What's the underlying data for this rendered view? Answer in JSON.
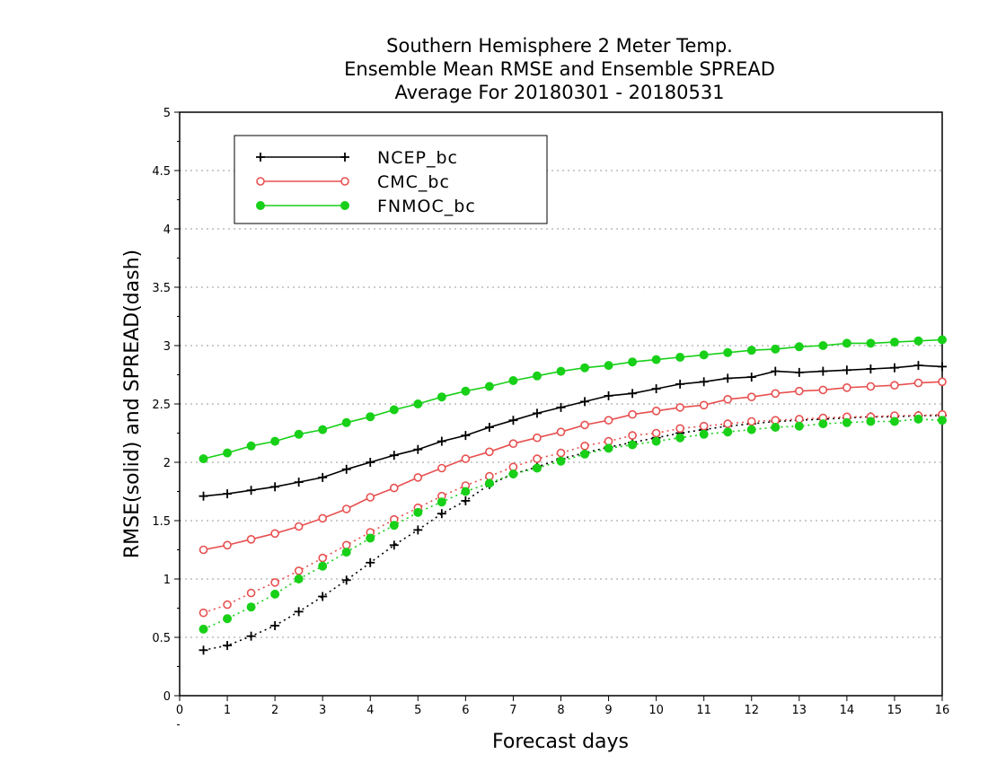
{
  "chart_data": {
    "type": "line",
    "title_lines": [
      "Southern Hemisphere 2 Meter Temp.",
      "Ensemble Mean RMSE and Ensemble SPREAD",
      "Average For 20180301 - 20180531"
    ],
    "xlabel": "Forecast days",
    "ylabel": "RMSE(solid) and SPREAD(dash)",
    "xlim": [
      0,
      16
    ],
    "ylim": [
      0,
      5
    ],
    "x_ticks": [
      "0",
      "1",
      "2",
      "3",
      "4",
      "5",
      "6",
      "7",
      "8",
      "9",
      "10",
      "11",
      "12",
      "13",
      "14",
      "15",
      "16"
    ],
    "y_ticks": [
      "0",
      "0.5",
      "1",
      "1.5",
      "2",
      "2.5",
      "3",
      "3.5",
      "4",
      "4.5",
      "5"
    ],
    "grid": "horizontal dotted",
    "legend_position": "top-left",
    "x": [
      0.5,
      1,
      1.5,
      2,
      2.5,
      3,
      3.5,
      4,
      4.5,
      5,
      5.5,
      6,
      6.5,
      7,
      7.5,
      8,
      8.5,
      9,
      9.5,
      10,
      10.5,
      11,
      11.5,
      12,
      12.5,
      13,
      13.5,
      14,
      14.5,
      15,
      15.5,
      16
    ],
    "series": [
      {
        "name": "NCEP_bc",
        "color": "#000000",
        "marker": "plus",
        "rmse": [
          1.71,
          1.73,
          1.76,
          1.79,
          1.83,
          1.87,
          1.94,
          2.0,
          2.06,
          2.11,
          2.18,
          2.23,
          2.3,
          2.36,
          2.42,
          2.47,
          2.52,
          2.57,
          2.59,
          2.63,
          2.67,
          2.69,
          2.72,
          2.73,
          2.78,
          2.77,
          2.78,
          2.79,
          2.8,
          2.81,
          2.83,
          2.82
        ],
        "spread": [
          0.39,
          0.43,
          0.51,
          0.6,
          0.72,
          0.85,
          0.99,
          1.14,
          1.29,
          1.42,
          1.56,
          1.67,
          1.81,
          1.9,
          1.96,
          2.03,
          2.08,
          2.13,
          2.17,
          2.21,
          2.25,
          2.28,
          2.31,
          2.33,
          2.35,
          2.36,
          2.37,
          2.38,
          2.39,
          2.39,
          2.4,
          2.4
        ]
      },
      {
        "name": "CMC_bc",
        "color": "#e85050",
        "marker": "open-circle",
        "rmse": [
          1.25,
          1.29,
          1.34,
          1.39,
          1.45,
          1.52,
          1.6,
          1.7,
          1.78,
          1.87,
          1.95,
          2.03,
          2.09,
          2.16,
          2.21,
          2.26,
          2.32,
          2.36,
          2.41,
          2.44,
          2.47,
          2.49,
          2.54,
          2.56,
          2.59,
          2.61,
          2.62,
          2.64,
          2.65,
          2.66,
          2.68,
          2.69
        ],
        "spread": [
          0.71,
          0.78,
          0.88,
          0.97,
          1.07,
          1.18,
          1.29,
          1.4,
          1.51,
          1.61,
          1.71,
          1.8,
          1.88,
          1.96,
          2.03,
          2.08,
          2.14,
          2.18,
          2.23,
          2.25,
          2.29,
          2.31,
          2.33,
          2.35,
          2.36,
          2.37,
          2.38,
          2.39,
          2.39,
          2.4,
          2.4,
          2.41
        ]
      },
      {
        "name": "FNMOC_bc",
        "color": "#18d018",
        "marker": "filled-circle",
        "rmse": [
          2.03,
          2.08,
          2.14,
          2.18,
          2.24,
          2.28,
          2.34,
          2.39,
          2.45,
          2.5,
          2.56,
          2.61,
          2.65,
          2.7,
          2.74,
          2.78,
          2.81,
          2.83,
          2.86,
          2.88,
          2.9,
          2.92,
          2.94,
          2.96,
          2.97,
          2.99,
          3.0,
          3.02,
          3.02,
          3.03,
          3.04,
          3.05
        ],
        "spread": [
          0.57,
          0.66,
          0.76,
          0.87,
          1.0,
          1.11,
          1.23,
          1.35,
          1.46,
          1.57,
          1.66,
          1.75,
          1.82,
          1.9,
          1.95,
          2.01,
          2.07,
          2.12,
          2.15,
          2.18,
          2.21,
          2.24,
          2.26,
          2.28,
          2.3,
          2.31,
          2.33,
          2.34,
          2.35,
          2.35,
          2.37,
          2.36
        ]
      }
    ]
  }
}
